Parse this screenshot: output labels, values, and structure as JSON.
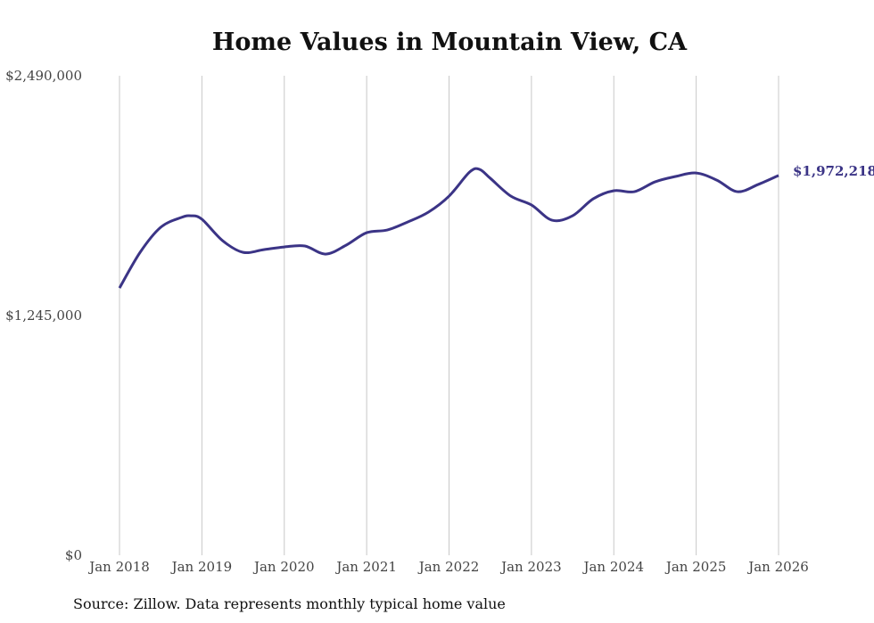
{
  "chart_data": {
    "type": "line",
    "title": "Home Values in Mountain View, CA",
    "source": "Source: Zillow. Data represents monthly typical home value",
    "xlabel": "",
    "ylabel": "",
    "ylim": [
      0,
      2490000
    ],
    "y_ticks": [
      0,
      1245000,
      2490000
    ],
    "y_tick_labels": [
      "$0",
      "$1,245,000",
      "$2,490,000"
    ],
    "x_ticks": [
      2018,
      2019,
      2020,
      2021,
      2022,
      2023,
      2024,
      2025,
      2026
    ],
    "x_tick_labels": [
      "Jan 2018",
      "Jan 2019",
      "Jan 2020",
      "Jan 2021",
      "Jan 2022",
      "Jan 2023",
      "Jan 2024",
      "Jan 2025",
      "Jan 2026"
    ],
    "grid": "vertical",
    "line_color": "#3b3486",
    "end_label": "$1,972,218",
    "series": [
      {
        "name": "Typical home value",
        "x": [
          2018,
          2018.25,
          2018.5,
          2018.75,
          2018.87,
          2019,
          2019.25,
          2019.5,
          2019.75,
          2020,
          2020.25,
          2020.5,
          2020.75,
          2021,
          2021.25,
          2021.5,
          2021.75,
          2022,
          2022.25,
          2022.37,
          2022.5,
          2022.75,
          2023,
          2023.25,
          2023.5,
          2023.75,
          2024,
          2024.25,
          2024.5,
          2024.75,
          2025,
          2025.25,
          2025.5,
          2025.75,
          2026
        ],
        "values": [
          1388000,
          1573000,
          1703000,
          1754000,
          1763000,
          1745000,
          1634000,
          1573000,
          1587000,
          1601000,
          1606000,
          1564000,
          1610000,
          1675000,
          1689000,
          1731000,
          1782000,
          1865000,
          1990000,
          2004000,
          1958000,
          1865000,
          1819000,
          1740000,
          1763000,
          1851000,
          1893000,
          1888000,
          1939000,
          1967000,
          1985000,
          1948000,
          1888000,
          1925000,
          1972218
        ]
      }
    ]
  }
}
